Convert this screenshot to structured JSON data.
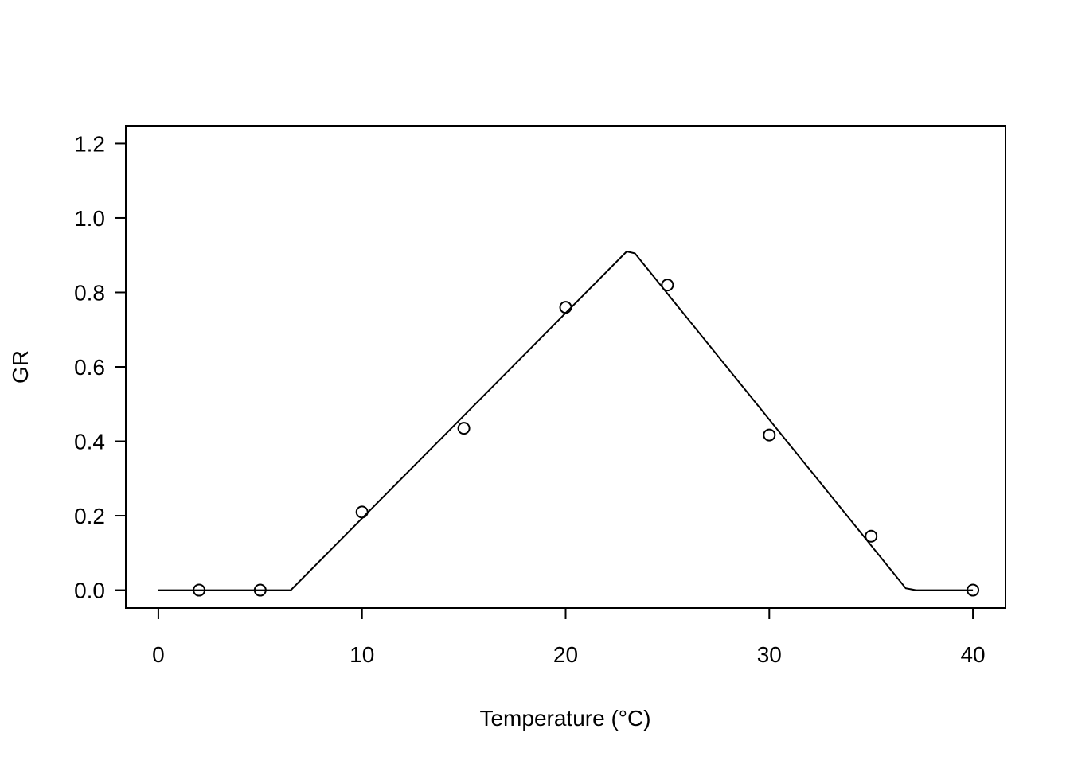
{
  "chart_data": {
    "type": "scatter",
    "title": "",
    "xlabel": "Temperature (°C)",
    "ylabel": "GR",
    "xlim": [
      -1.6,
      41.6
    ],
    "ylim": [
      -0.048,
      1.248
    ],
    "x_ticks": [
      0,
      10,
      20,
      30,
      40
    ],
    "x_tick_labels": [
      "0",
      "10",
      "20",
      "30",
      "40"
    ],
    "y_ticks": [
      0.0,
      0.2,
      0.4,
      0.6,
      0.8,
      1.0,
      1.2
    ],
    "y_tick_labels": [
      "0.0",
      "0.2",
      "0.4",
      "0.6",
      "0.8",
      "1.0",
      "1.2"
    ],
    "grid": false,
    "legend": "none",
    "series": [
      {
        "type": "scatter",
        "marker": "open-circle",
        "x": [
          2,
          5,
          10,
          15,
          20,
          25,
          30,
          35,
          40
        ],
        "y": [
          0.0,
          0.0,
          0.21,
          0.435,
          0.76,
          0.82,
          0.417,
          0.145,
          0.0
        ]
      },
      {
        "type": "line",
        "x": [
          0,
          6.5,
          23.0,
          23.4,
          36.7,
          37.2,
          40
        ],
        "y": [
          0.0,
          0.0,
          0.91,
          0.905,
          0.005,
          0.0,
          0.0
        ]
      }
    ],
    "colors": {
      "line": "#000000",
      "marker": "#000000",
      "background": "#ffffff"
    }
  }
}
